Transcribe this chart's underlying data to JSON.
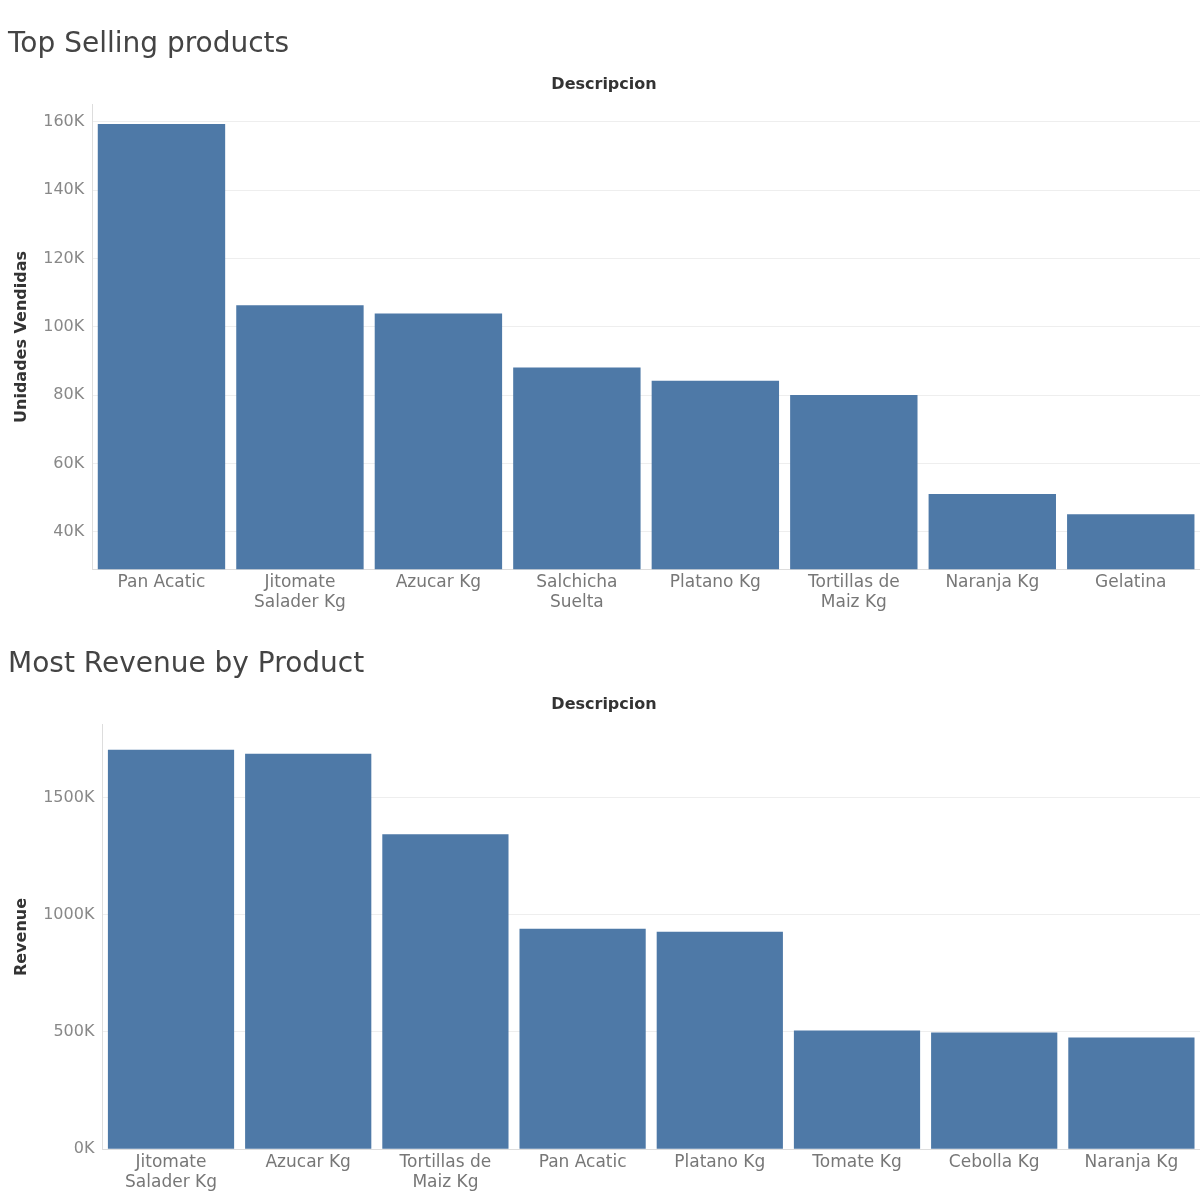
{
  "chart_data": [
    {
      "type": "bar",
      "title": "Top Selling products",
      "xlabel": "Descripcion",
      "ylabel": "Unidades Vendidas",
      "categories": [
        "Pan Acatic",
        "Jitomate Salader Kg",
        "Azucar Kg",
        "Salchicha Suelta",
        "Platano Kg",
        "Tortillas de Maiz Kg",
        "Naranja Kg",
        "Gelatina"
      ],
      "values": [
        159400,
        106300,
        103900,
        88100,
        84200,
        80000,
        51000,
        45100
      ],
      "color": "#4e79a7",
      "ylim": [
        29000,
        165000
      ],
      "yticks": [
        {
          "value": 40000,
          "label": "40K"
        },
        {
          "value": 60000,
          "label": "60K"
        },
        {
          "value": 80000,
          "label": "80K"
        },
        {
          "value": 100000,
          "label": "100K"
        },
        {
          "value": 120000,
          "label": "120K"
        },
        {
          "value": 140000,
          "label": "140K"
        },
        {
          "value": 160000,
          "label": "160K"
        }
      ],
      "grid": "y",
      "legend": false
    },
    {
      "type": "bar",
      "title": "Most Revenue by Product",
      "xlabel": "Descripcion",
      "ylabel": "Revenue",
      "categories": [
        "Jitomate Salader Kg",
        "Azucar Kg",
        "Tortillas de Maiz Kg",
        "Pan Acatic",
        "Platano Kg",
        "Tomate Kg",
        "Cebolla Kg",
        "Naranja Kg"
      ],
      "values": [
        1704000,
        1687000,
        1343000,
        940000,
        927000,
        506000,
        498000,
        476000
      ],
      "color": "#4e79a7",
      "ylim": [
        0,
        1810000
      ],
      "yticks": [
        {
          "value": 0,
          "label": "0K"
        },
        {
          "value": 500000,
          "label": "500K"
        },
        {
          "value": 1000000,
          "label": "1000K"
        },
        {
          "value": 1500000,
          "label": "1500K"
        }
      ],
      "grid": "y",
      "legend": false
    }
  ]
}
